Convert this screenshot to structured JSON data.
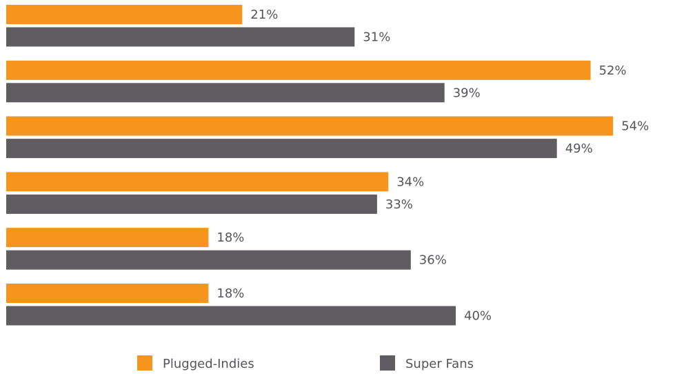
{
  "chart_data": {
    "type": "bar",
    "orientation": "horizontal",
    "value_suffix": "%",
    "xlim": [
      0,
      54
    ],
    "grid": false,
    "legend_position": "bottom",
    "series": [
      {
        "name": "Plugged-Indies",
        "color": "#F7941D",
        "values": [
          21,
          52,
          54,
          34,
          18,
          18
        ]
      },
      {
        "name": "Super Fans",
        "color": "#5F5D62",
        "values": [
          31,
          39,
          49,
          33,
          36,
          40
        ]
      }
    ]
  }
}
